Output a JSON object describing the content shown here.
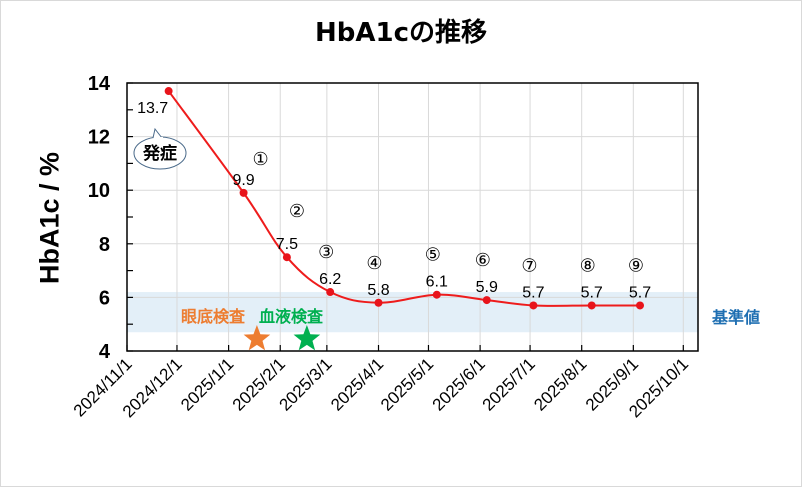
{
  "title": "HbA1cの推移",
  "colors": {
    "line": "#ee1c1c",
    "marker": "#e8141b",
    "band": "#e3eff8",
    "grid": "#d9d9d9",
    "eye_exam": "#ed7d31",
    "blood_exam": "#00b050",
    "reference": "#1f6fb2"
  },
  "annotations": {
    "onset": "発症",
    "eye_exam": "眼底検査",
    "blood_exam": "血液検査",
    "reference_range": "基準値"
  },
  "chart_data": {
    "type": "line",
    "title": "HbA1cの推移",
    "xlabel": "",
    "ylabel": "HbA1c / %",
    "ylim": [
      4,
      14
    ],
    "yticks": [
      4,
      6,
      8,
      10,
      12,
      14
    ],
    "grid": true,
    "legend": "none",
    "x_tick_labels": [
      "2024/11/1",
      "2024/12/1",
      "2025/1/1",
      "2025/2/1",
      "2025/3/1",
      "2025/4/1",
      "2025/5/1",
      "2025/6/1",
      "2025/7/1",
      "2025/8/1",
      "2025/9/1",
      "2025/10/1"
    ],
    "series": [
      {
        "name": "HbA1c",
        "x": [
          "2024/11/26",
          "2025/1/10",
          "2025/2/5",
          "2025/3/3",
          "2025/4/1",
          "2025/5/6",
          "2025/6/5",
          "2025/7/3",
          "2025/8/7",
          "2025/9/5"
        ],
        "values": [
          13.7,
          9.9,
          7.5,
          6.2,
          5.8,
          6.1,
          5.9,
          5.7,
          5.7,
          5.7
        ],
        "point_labels": [
          "",
          "①",
          "②",
          "③",
          "④",
          "⑤",
          "⑥",
          "⑦",
          "⑧",
          "⑨"
        ]
      }
    ],
    "reference_band": {
      "label": "基準値",
      "from": 4.7,
      "to": 6.2
    },
    "markers": [
      {
        "label": "眼底検査",
        "shape": "star",
        "color": "#ed7d31",
        "x": "2025/1/18"
      },
      {
        "label": "血液検査",
        "shape": "star",
        "color": "#00b050",
        "x": "2025/2/17"
      }
    ],
    "callouts": [
      {
        "text": "発症",
        "anchor": "2024/11/26"
      }
    ]
  }
}
